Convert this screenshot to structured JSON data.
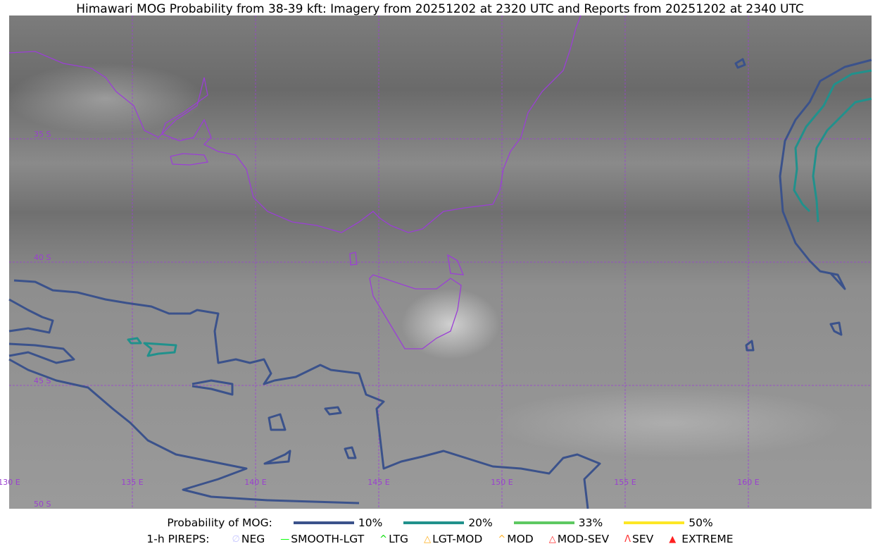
{
  "title": "Himawari MOG Probability from 38-39 kft: Imagery from 20251202 at 2320 UTC and Reports from 20251202 at 2340 UTC",
  "map": {
    "lon_labels": [
      "130 E",
      "135 E",
      "140 E",
      "145 E",
      "150 E",
      "155 E",
      "160 E"
    ],
    "lat_labels": [
      "35 S",
      "40 S",
      "45 S",
      "50 S"
    ],
    "colors": {
      "coastline": "#9b3fd6",
      "gridline": "#9b3fd6",
      "p10": "#3b528b",
      "p20": "#21918c",
      "p33": "#5ec962",
      "p50": "#fde725"
    }
  },
  "legend": {
    "prob_title": "Probability of MOG:",
    "prob_items": [
      {
        "label": "10%",
        "color": "#3b528b"
      },
      {
        "label": "20%",
        "color": "#21918c"
      },
      {
        "label": "33%",
        "color": "#5ec962"
      },
      {
        "label": "50%",
        "color": "#fde725"
      }
    ],
    "pirep_title": "1-h PIREPS:",
    "pirep_items": [
      {
        "label": "NEG",
        "icon": "neg-icon",
        "color": "#c8c8ff"
      },
      {
        "label": "SMOOTH-LGT",
        "icon": "line-icon",
        "color": "#00ff00"
      },
      {
        "label": "LTG",
        "icon": "caret-icon",
        "color": "#00dd00"
      },
      {
        "label": "LGT-MOD",
        "icon": "caret-bar-icon",
        "color": "#ffb020"
      },
      {
        "label": "MOD",
        "icon": "caret-icon",
        "color": "#ffb020"
      },
      {
        "label": "MOD-SEV",
        "icon": "double-caret-bar-icon",
        "color": "#ff3030"
      },
      {
        "label": "SEV",
        "icon": "double-caret-icon",
        "color": "#ff3030"
      },
      {
        "label": "EXTREME",
        "icon": "filled-triangle-icon",
        "color": "#ff2020"
      }
    ]
  }
}
